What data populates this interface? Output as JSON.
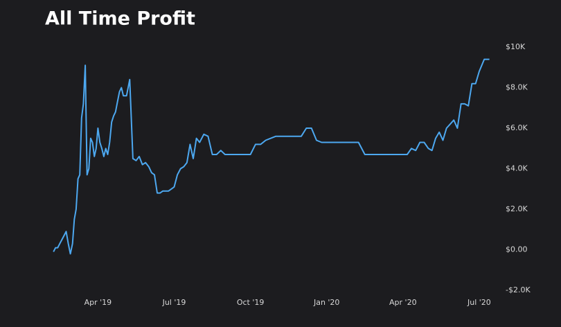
{
  "chart_data": {
    "type": "line",
    "title": "All Time Profit",
    "x": [
      "2019-02",
      "2019-02",
      "2019-02",
      "2019-02",
      "2019-02",
      "2019-02",
      "2019-02",
      "2019-02",
      "2019-02",
      "2019-02",
      "2019-02",
      "2019-02",
      "2019-03",
      "2019-03",
      "2019-03",
      "2019-03",
      "2019-03",
      "2019-03",
      "2019-03",
      "2019-03",
      "2019-03",
      "2019-03",
      "2019-03",
      "2019-03",
      "2019-03",
      "2019-03",
      "2019-04",
      "2019-04",
      "2019-04",
      "2019-04",
      "2019-04",
      "2019-04",
      "2019-04",
      "2019-04",
      "2019-04",
      "2019-04",
      "2019-04",
      "2019-04",
      "2019-04",
      "2019-05",
      "2019-05",
      "2019-05",
      "2019-05",
      "2019-05",
      "2019-05",
      "2019-05",
      "2019-05",
      "2019-06",
      "2019-06",
      "2019-06",
      "2019-06",
      "2019-06",
      "2019-06",
      "2019-06",
      "2019-06",
      "2019-06",
      "2019-07",
      "2019-07",
      "2019-07",
      "2019-07",
      "2019-07",
      "2019-07",
      "2019-07",
      "2019-07",
      "2019-08",
      "2019-08",
      "2019-08",
      "2019-08",
      "2019-08",
      "2019-08",
      "2019-09",
      "2019-09",
      "2019-09",
      "2019-09",
      "2019-10",
      "2019-10",
      "2019-10",
      "2019-10",
      "2019-10",
      "2019-11",
      "2019-11",
      "2019-11",
      "2019-11",
      "2019-12",
      "2019-12",
      "2019-12",
      "2019-12",
      "2019-12",
      "2020-01",
      "2020-01",
      "2020-01",
      "2020-01",
      "2020-02",
      "2020-02",
      "2020-02",
      "2020-02",
      "2020-03",
      "2020-03",
      "2020-03",
      "2020-03",
      "2020-04",
      "2020-04",
      "2020-04",
      "2020-04",
      "2020-04",
      "2020-04",
      "2020-05",
      "2020-05",
      "2020-05",
      "2020-05",
      "2020-05",
      "2020-05",
      "2020-05",
      "2020-06",
      "2020-06",
      "2020-06",
      "2020-06",
      "2020-06",
      "2020-06",
      "2020-06",
      "2020-07",
      "2020-07",
      "2020-07",
      "2020-07",
      "2020-07"
    ],
    "series": [
      {
        "name": "Profit",
        "color": "#4da8f0",
        "values": [
          null,
          null,
          null,
          -100,
          100,
          100,
          300,
          500,
          700,
          900,
          300,
          -200,
          300,
          1500,
          2000,
          3500,
          3700,
          6500,
          7200,
          9100,
          3700,
          4000,
          5500,
          5300,
          4600,
          5000,
          6000,
          5300,
          5000,
          4600,
          5000,
          4700,
          5300,
          6300,
          6600,
          6800,
          7300,
          7800,
          8000,
          7600,
          7600,
          8400,
          4500,
          4400,
          4600,
          4200,
          4300,
          4100,
          3800,
          3700,
          2800,
          2800,
          2900,
          2900,
          2900,
          3000,
          3100,
          3700,
          4000,
          4100,
          4300,
          5200,
          4500,
          5500,
          5300,
          5700,
          5600,
          4700,
          4700,
          4900,
          4700,
          4700,
          4700,
          4700,
          4700,
          5200,
          5200,
          5400,
          5500,
          5600,
          5600,
          5600,
          5600,
          5600,
          6000,
          6000,
          5400,
          5300,
          5300,
          5300,
          5300,
          5300,
          5300,
          5300,
          4700,
          4700,
          4700,
          4700,
          4700,
          4700,
          4700,
          4700,
          5000,
          4900,
          5300,
          5300,
          5000,
          4900,
          5500,
          5800,
          5400,
          6000,
          6200,
          6400,
          6000,
          7200,
          7200,
          7100,
          8200,
          8200,
          8800,
          9400,
          9400,
          null,
          null
        ]
      }
    ],
    "xlim": [
      "2019-02",
      "2020-08"
    ],
    "xticks": [
      {
        "value": "2019-04",
        "label": "Apr '19"
      },
      {
        "value": "2019-07",
        "label": "Jul '19"
      },
      {
        "value": "2019-10",
        "label": "Oct '19"
      },
      {
        "value": "2020-01",
        "label": "Jan '20"
      },
      {
        "value": "2020-04",
        "label": "Apr '20"
      },
      {
        "value": "2020-07",
        "label": "Jul '20"
      }
    ],
    "ylim": [
      -2000,
      10000
    ],
    "yticks": [
      {
        "value": -2000,
        "label": "-$2.0K"
      },
      {
        "value": 0,
        "label": "$0.00"
      },
      {
        "value": 2000,
        "label": "$2.0K"
      },
      {
        "value": 4000,
        "label": "$4.0K"
      },
      {
        "value": 6000,
        "label": "$6.0K"
      },
      {
        "value": 8000,
        "label": "$8.0K"
      },
      {
        "value": 10000,
        "label": "$10K"
      }
    ],
    "grid": false
  }
}
